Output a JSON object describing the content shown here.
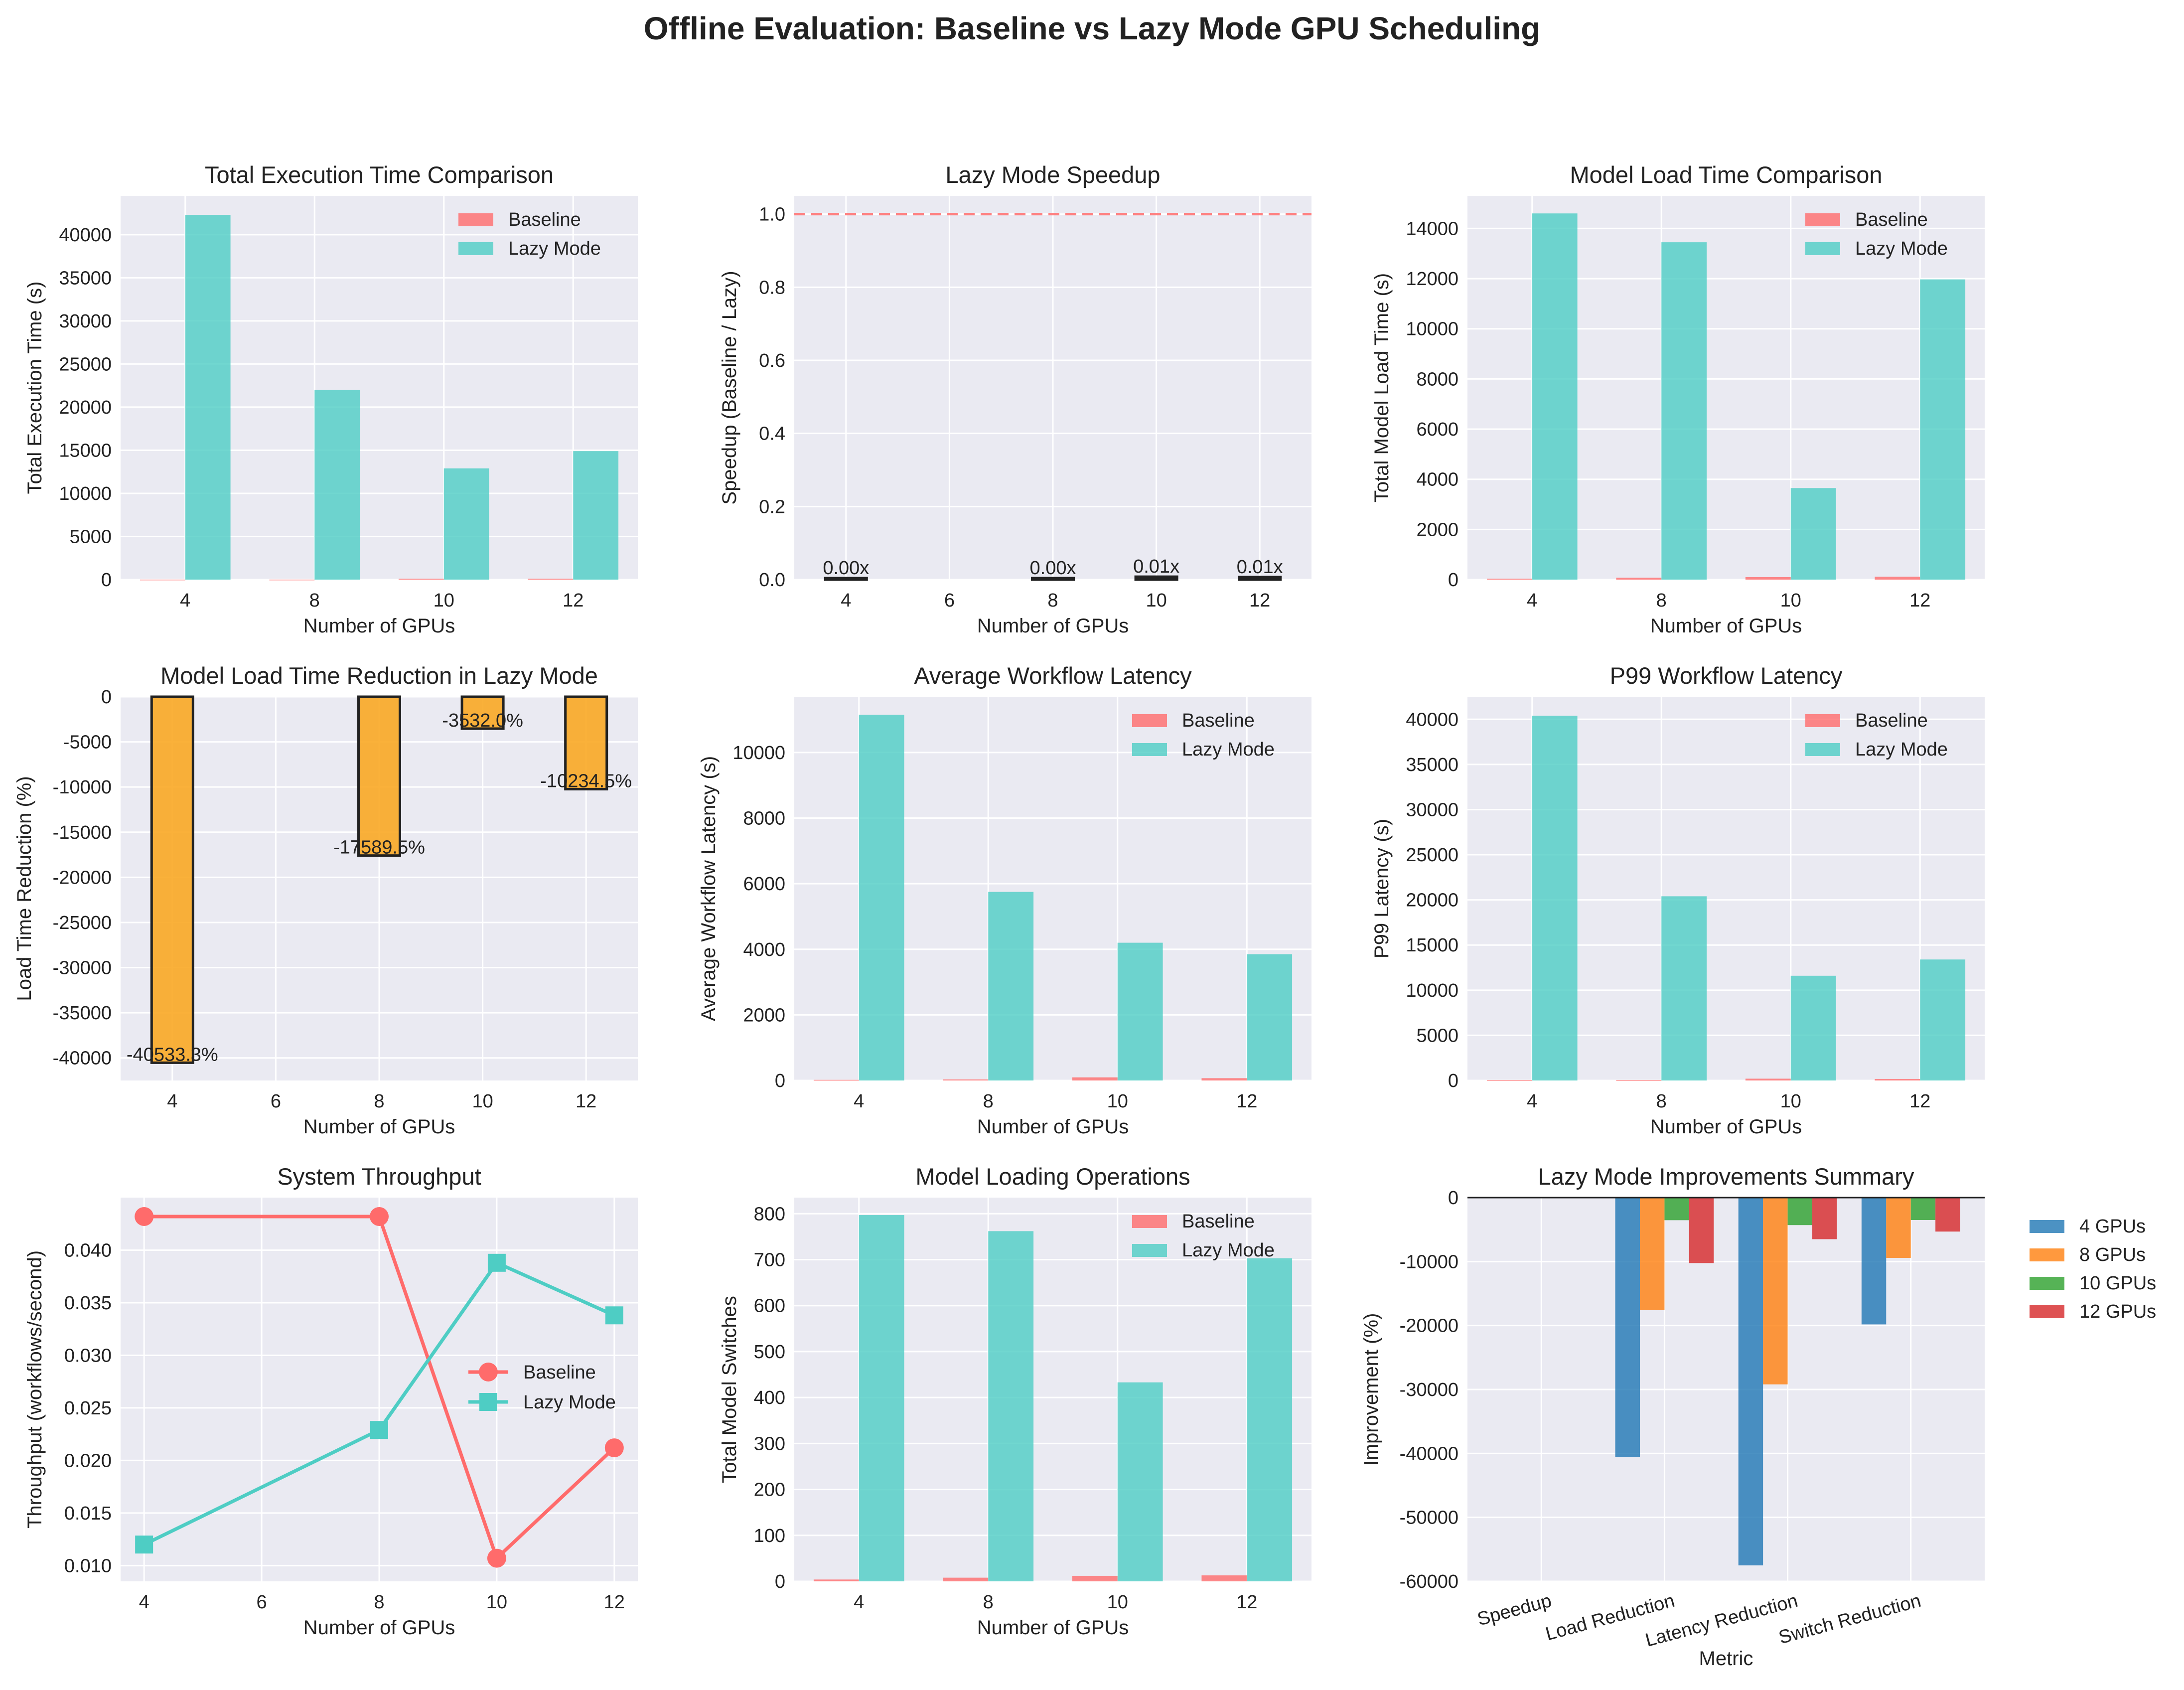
{
  "page": {
    "title": "Offline Evaluation: Baseline vs Lazy Mode GPU Scheduling"
  },
  "colors": {
    "baseline": "#ff6b6b",
    "lazy": "#4ecdc4",
    "reduction": "#f9a825",
    "speedup_bar": "#222222",
    "reference_line": "#ff6b6b",
    "summary": [
      "#1f77b4",
      "#ff7f0e",
      "#2ca02c",
      "#d62728"
    ],
    "axes_bg": "#eaeaf2",
    "grid": "#ffffff"
  },
  "chart_data": [
    {
      "id": "exec",
      "type": "bar",
      "title": "Total Execution Time Comparison",
      "xlabel": "Number of GPUs",
      "ylabel": "Total Execution Time (s)",
      "categories": [
        "4",
        "8",
        "10",
        "12"
      ],
      "series": [
        {
          "name": "Baseline",
          "values": [
            0,
            0,
            100,
            100
          ]
        },
        {
          "name": "Lazy Mode",
          "values": [
            42300,
            22000,
            12900,
            14900
          ]
        }
      ],
      "ylim": [
        0,
        44500
      ],
      "yticks": [
        0,
        5000,
        10000,
        15000,
        20000,
        25000,
        30000,
        35000,
        40000
      ],
      "legend": "top-right",
      "grid": true
    },
    {
      "id": "speedup",
      "type": "bar",
      "title": "Lazy Mode Speedup",
      "xlabel": "Number of GPUs",
      "ylabel": "Speedup (Baseline / Lazy)",
      "x": [
        4,
        8,
        10,
        12
      ],
      "values": [
        0.001,
        0.001,
        0.008,
        0.007
      ],
      "data_labels": [
        "0.00x",
        "0.00x",
        "0.01x",
        "0.01x"
      ],
      "reference_line": 1.0,
      "xlim": [
        3,
        13
      ],
      "xticks": [
        4,
        6,
        8,
        10,
        12
      ],
      "ylim": [
        0,
        1.05
      ],
      "yticks": [
        0.0,
        0.2,
        0.4,
        0.6,
        0.8,
        1.0
      ],
      "grid": true
    },
    {
      "id": "load",
      "type": "bar",
      "title": "Model Load Time Comparison",
      "xlabel": "Number of GPUs",
      "ylabel": "Total Model Load Time (s)",
      "categories": [
        "4",
        "8",
        "10",
        "12"
      ],
      "series": [
        {
          "name": "Baseline",
          "values": [
            36,
            76,
            100,
            115
          ]
        },
        {
          "name": "Lazy Mode",
          "values": [
            14600,
            13450,
            3650,
            11970
          ]
        }
      ],
      "ylim": [
        0,
        15300
      ],
      "yticks": [
        0,
        2000,
        4000,
        6000,
        8000,
        10000,
        12000,
        14000
      ],
      "legend": "top-right",
      "grid": true
    },
    {
      "id": "reduction",
      "type": "bar",
      "title": "Model Load Time Reduction in Lazy Mode",
      "xlabel": "Number of GPUs",
      "ylabel": "Load Time Reduction (%)",
      "x": [
        4,
        8,
        10,
        12
      ],
      "values": [
        -40533.3,
        -17589.5,
        -3532.0,
        -10234.5
      ],
      "data_labels": [
        "-40533.3%",
        "-17589.5%",
        "-3532.0%",
        "-10234.5%"
      ],
      "xlim": [
        3,
        13
      ],
      "xticks": [
        4,
        6,
        8,
        10,
        12
      ],
      "ylim": [
        -42500,
        0
      ],
      "yticks": [
        -40000,
        -35000,
        -30000,
        -25000,
        -20000,
        -15000,
        -10000,
        -5000,
        0
      ],
      "grid": true
    },
    {
      "id": "avglat",
      "type": "bar",
      "title": "Average Workflow Latency",
      "xlabel": "Number of GPUs",
      "ylabel": "Average Workflow Latency (s)",
      "categories": [
        "4",
        "8",
        "10",
        "12"
      ],
      "series": [
        {
          "name": "Baseline",
          "values": [
            20,
            33,
            95,
            70
          ]
        },
        {
          "name": "Lazy Mode",
          "values": [
            11150,
            5750,
            4200,
            3850
          ]
        }
      ],
      "ylim": [
        0,
        11700
      ],
      "yticks": [
        0,
        2000,
        4000,
        6000,
        8000,
        10000
      ],
      "legend": "top-right",
      "grid": true
    },
    {
      "id": "p99",
      "type": "bar",
      "title": "P99 Workflow Latency",
      "xlabel": "Number of GPUs",
      "ylabel": "P99 Latency (s)",
      "categories": [
        "4",
        "8",
        "10",
        "12"
      ],
      "series": [
        {
          "name": "Baseline",
          "values": [
            60,
            60,
            200,
            170
          ]
        },
        {
          "name": "Lazy Mode",
          "values": [
            40400,
            20400,
            11600,
            13400
          ]
        }
      ],
      "ylim": [
        0,
        42500
      ],
      "yticks": [
        0,
        5000,
        10000,
        15000,
        20000,
        25000,
        30000,
        35000,
        40000
      ],
      "legend": "top-right",
      "grid": true
    },
    {
      "id": "throughput",
      "type": "line",
      "title": "System Throughput",
      "xlabel": "Number of GPUs",
      "ylabel": "Throughput (workflows/second)",
      "x": [
        4,
        8,
        10,
        12
      ],
      "series": [
        {
          "name": "Baseline",
          "values": [
            0.0432,
            0.0432,
            0.0107,
            0.0212
          ],
          "marker": "circle"
        },
        {
          "name": "Lazy Mode",
          "values": [
            0.012,
            0.0229,
            0.0388,
            0.0338
          ],
          "marker": "square"
        }
      ],
      "xlim": [
        3.6,
        12.4
      ],
      "xticks": [
        4,
        6,
        8,
        10,
        12
      ],
      "ylim": [
        0.0085,
        0.045
      ],
      "yticks": [
        0.01,
        0.015,
        0.02,
        0.025,
        0.03,
        0.035,
        0.04
      ],
      "legend": "center-right",
      "grid": true
    },
    {
      "id": "switches",
      "type": "bar",
      "title": "Model Loading Operations",
      "xlabel": "Number of GPUs",
      "ylabel": "Total Model Switches",
      "categories": [
        "4",
        "8",
        "10",
        "12"
      ],
      "series": [
        {
          "name": "Baseline",
          "values": [
            4,
            8,
            12,
            13
          ]
        },
        {
          "name": "Lazy Mode",
          "values": [
            797,
            762,
            433,
            703
          ]
        }
      ],
      "ylim": [
        0,
        835
      ],
      "yticks": [
        0,
        100,
        200,
        300,
        400,
        500,
        600,
        700,
        800
      ],
      "legend": "top-right",
      "grid": true
    },
    {
      "id": "summary",
      "type": "bar",
      "title": "Lazy Mode Improvements Summary",
      "xlabel": "Metric",
      "ylabel": "Improvement (%)",
      "categories": [
        "Speedup",
        "Load Reduction",
        "Latency Reduction",
        "Switch Reduction"
      ],
      "series": [
        {
          "name": "4 GPUs",
          "values": [
            -99.9,
            -40533.3,
            -57500,
            -19825
          ]
        },
        {
          "name": "8 GPUs",
          "values": [
            -99.9,
            -17589.5,
            -29200,
            -9425
          ]
        },
        {
          "name": "10 GPUs",
          "values": [
            -99.2,
            -3532.0,
            -4300,
            -3508
          ]
        },
        {
          "name": "12 GPUs",
          "values": [
            -99.3,
            -10234.5,
            -6500,
            -5308
          ]
        }
      ],
      "ylim": [
        -60000,
        0
      ],
      "yticks": [
        -60000,
        -50000,
        -40000,
        -30000,
        -20000,
        -10000,
        0
      ],
      "legend": "outside-right",
      "grid": true
    }
  ]
}
